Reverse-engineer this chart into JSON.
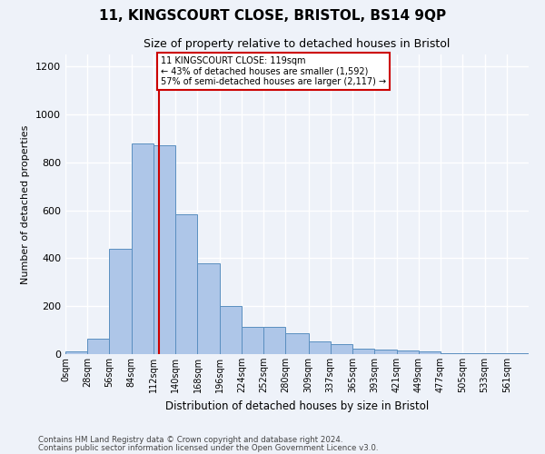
{
  "title": "11, KINGSCOURT CLOSE, BRISTOL, BS14 9QP",
  "subtitle": "Size of property relative to detached houses in Bristol",
  "xlabel": "Distribution of detached houses by size in Bristol",
  "ylabel": "Number of detached properties",
  "bin_labels": [
    "0sqm",
    "28sqm",
    "56sqm",
    "84sqm",
    "112sqm",
    "140sqm",
    "168sqm",
    "196sqm",
    "224sqm",
    "252sqm",
    "280sqm",
    "309sqm",
    "337sqm",
    "365sqm",
    "393sqm",
    "421sqm",
    "449sqm",
    "477sqm",
    "505sqm",
    "533sqm",
    "561sqm"
  ],
  "bar_heights": [
    12,
    65,
    440,
    880,
    870,
    585,
    378,
    202,
    115,
    115,
    87,
    52,
    42,
    22,
    18,
    15,
    10,
    5,
    5,
    4,
    3
  ],
  "bar_color": "#aec6e8",
  "bar_edge_color": "#5a8fc0",
  "bin_starts": [
    0,
    28,
    56,
    84,
    112,
    140,
    168,
    196,
    224,
    252,
    280,
    309,
    337,
    365,
    393,
    421,
    449,
    477,
    505,
    533,
    561
  ],
  "bin_ends": [
    28,
    56,
    84,
    112,
    140,
    168,
    196,
    224,
    252,
    280,
    309,
    337,
    365,
    393,
    421,
    449,
    477,
    505,
    533,
    561,
    589
  ],
  "vline_x": 119,
  "vline_color": "#cc0000",
  "annotation_text": "11 KINGSCOURT CLOSE: 119sqm\n← 43% of detached houses are smaller (1,592)\n57% of semi-detached houses are larger (2,117) →",
  "annotation_box_color": "#ffffff",
  "annotation_box_edge_color": "#cc0000",
  "ylim": [
    0,
    1250
  ],
  "xlim": [
    0,
    589
  ],
  "yticks": [
    0,
    200,
    400,
    600,
    800,
    1000,
    1200
  ],
  "footer_line1": "Contains HM Land Registry data © Crown copyright and database right 2024.",
  "footer_line2": "Contains public sector information licensed under the Open Government Licence v3.0.",
  "bg_color": "#eef2f9",
  "grid_color": "#ffffff"
}
